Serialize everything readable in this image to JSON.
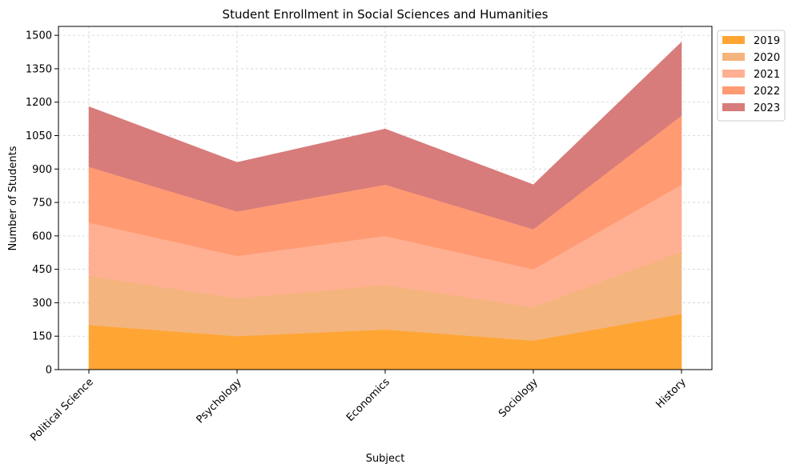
{
  "chart_data": {
    "type": "area",
    "stacked": true,
    "title": "Student Enrollment in Social Sciences and Humanities",
    "xlabel": "Subject",
    "ylabel": "Number of Students",
    "categories": [
      "Political Science",
      "Psychology",
      "Economics",
      "Sociology",
      "History"
    ],
    "series": [
      {
        "name": "2019",
        "values": [
          200,
          150,
          180,
          130,
          250
        ],
        "color": "#ffa533"
      },
      {
        "name": "2020",
        "values": [
          220,
          170,
          200,
          150,
          280
        ],
        "color": "#f4b47d"
      },
      {
        "name": "2021",
        "values": [
          240,
          190,
          220,
          170,
          300
        ],
        "color": "#ffb092"
      },
      {
        "name": "2022",
        "values": [
          250,
          200,
          230,
          180,
          310
        ],
        "color": "#ff9a73"
      },
      {
        "name": "2023",
        "values": [
          270,
          220,
          250,
          200,
          330
        ],
        "color": "#d77c7b"
      }
    ],
    "ylim": [
      0,
      1540
    ],
    "yticks": [
      0,
      150,
      300,
      450,
      600,
      750,
      900,
      1050,
      1200,
      1350,
      1500
    ],
    "grid": true,
    "legend_position": "outside top-right"
  }
}
